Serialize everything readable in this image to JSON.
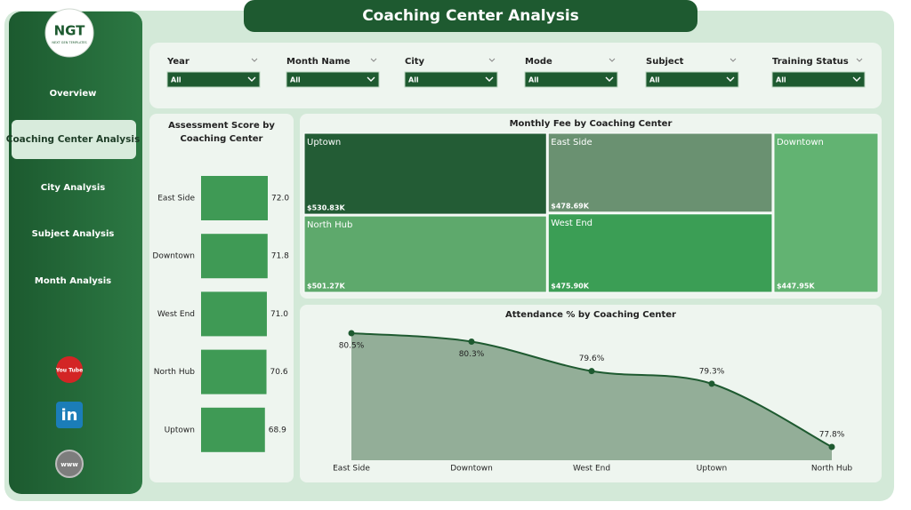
{
  "header": {
    "title": "Coaching Center Analysis"
  },
  "logo": {
    "text": "NGT",
    "tagline": "NEXT GEN TEMPLATES"
  },
  "nav": {
    "items": [
      "Overview",
      "Coaching Center Analysis",
      "City Analysis",
      "Subject Analysis",
      "Month Analysis"
    ],
    "active": 1
  },
  "social": [
    "You Tube",
    "in",
    "www"
  ],
  "filters": [
    {
      "label": "Year",
      "value": "All"
    },
    {
      "label": "Month Name",
      "value": "All"
    },
    {
      "label": "City",
      "value": "All"
    },
    {
      "label": "Mode",
      "value": "All"
    },
    {
      "label": "Subject",
      "value": "All"
    },
    {
      "label": "Training Status",
      "value": "All"
    }
  ],
  "chart_data": [
    {
      "type": "hbar",
      "title": "Assessment Score by Coaching Center",
      "categories": [
        "East Side",
        "Downtown",
        "West End",
        "North Hub",
        "Uptown"
      ],
      "values": [
        72.0,
        71.8,
        71.0,
        70.6,
        68.9
      ],
      "value_labels": [
        "72.0",
        "71.8",
        "71.0",
        "70.6",
        "68.9"
      ],
      "color": "#3f9a55"
    },
    {
      "type": "treemap",
      "title": "Monthly Fee by Coaching Center",
      "categories": [
        "Uptown",
        "North Hub",
        "East Side",
        "West End",
        "Downtown"
      ],
      "values": [
        530830,
        501270,
        478690,
        475900,
        447950
      ],
      "value_labels": [
        "$530.83K",
        "$501.27K",
        "$478.69K",
        "$475.90K",
        "$447.95K"
      ],
      "colors": [
        "#235c35",
        "#5ea96c",
        "#6a9171",
        "#3b9e55",
        "#62b372"
      ]
    },
    {
      "type": "area",
      "title": "Attendance % by Coaching Center",
      "categories": [
        "East Side",
        "Downtown",
        "West End",
        "Uptown",
        "North Hub"
      ],
      "values": [
        80.5,
        80.3,
        79.6,
        79.3,
        77.8
      ],
      "value_labels": [
        "80.5%",
        "80.3%",
        "79.6%",
        "79.3%",
        "77.8%"
      ],
      "color": "#93ae98",
      "line_color": "#1e5a30"
    }
  ]
}
